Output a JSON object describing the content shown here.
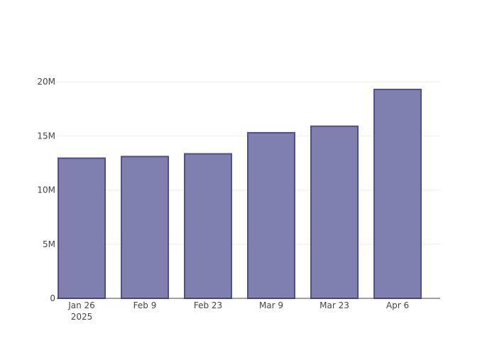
{
  "chart_data": {
    "type": "bar",
    "title": "",
    "xlabel": "",
    "ylabel": "",
    "x_ticks": [
      {
        "label": "Jan 26",
        "sublabel": "2025",
        "date": "2025-01-26"
      },
      {
        "label": "Feb 9",
        "date": "2025-02-09"
      },
      {
        "label": "Feb 23",
        "date": "2025-02-23"
      },
      {
        "label": "Mar 9",
        "date": "2025-03-09"
      },
      {
        "label": "Mar 23",
        "date": "2025-03-23"
      },
      {
        "label": "Apr 6",
        "date": "2025-04-06"
      }
    ],
    "y_ticks": [
      {
        "label": "0",
        "value": 0
      },
      {
        "label": "5M",
        "value": 5000000
      },
      {
        "label": "10M",
        "value": 10000000
      },
      {
        "label": "15M",
        "value": 15000000
      },
      {
        "label": "20M",
        "value": 20000000
      }
    ],
    "ylim": [
      0,
      21000000
    ],
    "bars": [
      {
        "date": "2025-01-26",
        "value": 12950000
      },
      {
        "date": "2025-02-09",
        "value": 13100000
      },
      {
        "date": "2025-02-23",
        "value": 13350000
      },
      {
        "date": "2025-03-09",
        "value": 15300000
      },
      {
        "date": "2025-03-23",
        "value": 15900000
      },
      {
        "date": "2025-04-06",
        "value": 19300000
      }
    ],
    "grid": true,
    "legend": "none",
    "colors": {
      "bar_fill": "#7f7fb0",
      "bar_stroke": "#4f4f8a",
      "grid": "#eeeeee",
      "axis": "#444444"
    }
  }
}
